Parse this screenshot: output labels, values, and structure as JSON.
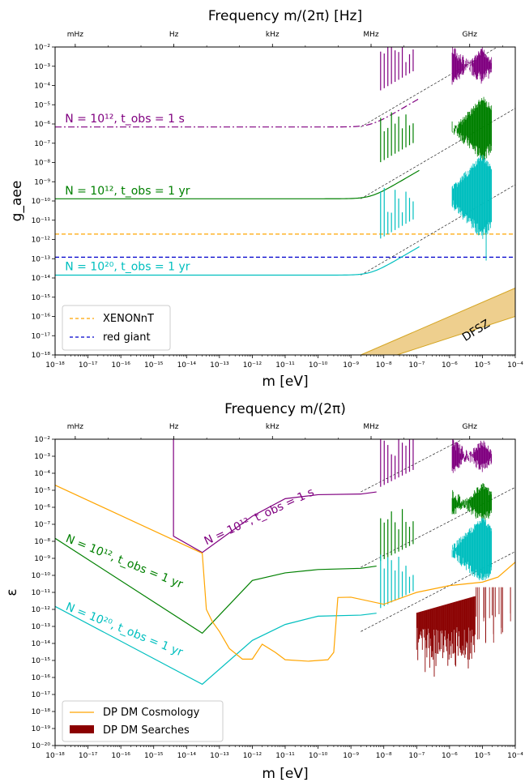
{
  "colors": {
    "purple": "#800080",
    "green": "#008000",
    "cyan": "#00bfbf",
    "orange": "#ffa500",
    "blue": "#0000cc",
    "darkred": "#8b0000",
    "dfsz_fill": "#eecf8e",
    "dfsz_edge": "#d4a420"
  },
  "chart_data": [
    {
      "type": "line",
      "title": "Frequency m/(2π) [Hz]",
      "xlabel": "m [eV]",
      "ylabel": "g_aee",
      "xscale": "log",
      "yscale": "log",
      "xlim": [
        1e-18,
        0.0001
      ],
      "ylim": [
        1e-18,
        0.01
      ],
      "x_tick_labels": [
        "10⁻¹⁸",
        "10⁻¹⁷",
        "10⁻¹⁶",
        "10⁻¹⁵",
        "10⁻¹⁴",
        "10⁻¹³",
        "10⁻¹²",
        "10⁻¹¹",
        "10⁻¹⁰",
        "10⁻⁹",
        "10⁻⁸",
        "10⁻⁷",
        "10⁻⁶",
        "10⁻⁵",
        "10⁻⁴"
      ],
      "y_tick_labels": [
        "10⁻¹⁸",
        "10⁻¹⁷",
        "10⁻¹⁶",
        "10⁻¹⁵",
        "10⁻¹⁴",
        "10⁻¹³",
        "10⁻¹²",
        "10⁻¹¹",
        "10⁻¹⁰",
        "10⁻⁹",
        "10⁻⁸",
        "10⁻⁷",
        "10⁻⁶",
        "10⁻⁵",
        "10⁻⁴",
        "10⁻³",
        "10⁻²"
      ],
      "top_axis": [
        {
          "label": "mHz",
          "m": 4.1e-18
        },
        {
          "label": "Hz",
          "m": 4.1e-15
        },
        {
          "label": "kHz",
          "m": 4.1e-12
        },
        {
          "label": "MHz",
          "m": 4.1e-09
        },
        {
          "label": "GHz",
          "m": 4.1e-06
        }
      ],
      "series": [
        {
          "key": "purple",
          "floor": 7e-07,
          "floor_style": "dashdot"
        },
        {
          "key": "green",
          "floor": 1.3e-10
        },
        {
          "key": "cyan",
          "floor": 1.4e-14
        }
      ],
      "annotations": [
        {
          "text": "N = 10¹², t_obs = 1 s",
          "color": "purple",
          "m": 2e-18,
          "g": 1.2e-06,
          "rot": 0
        },
        {
          "text": "N = 10¹², t_obs = 1 yr",
          "color": "green",
          "m": 2e-18,
          "g": 2.2e-10,
          "rot": 0
        },
        {
          "text": "N = 10²⁰, t_obs = 1 yr",
          "color": "cyan",
          "m": 2e-18,
          "g": 2.5e-14,
          "rot": 0
        },
        {
          "text": "DFSZ",
          "color": "black",
          "m": 3e-06,
          "g": 5e-18,
          "rot": -32
        }
      ],
      "hlines": [
        {
          "name": "XENONnT",
          "y": 1.9e-12,
          "color": "orange"
        },
        {
          "name": "red giant",
          "y": 1.2e-13,
          "color": "blue"
        }
      ],
      "legend": [
        "XENONnT",
        "red giant"
      ],
      "legend_position": "lower-left",
      "dfsz_band": {
        "m": [
          2e-09,
          0.0001
        ],
        "g_low": [
          1e-18,
          1e-16
        ],
        "g_high": [
          1e-18,
          3e-15
        ]
      }
    },
    {
      "type": "line",
      "title": "Frequency m/(2π)",
      "xlabel": "m [eV]",
      "ylabel": "ε",
      "xscale": "log",
      "yscale": "log",
      "xlim": [
        1e-18,
        0.0001
      ],
      "ylim": [
        1e-20,
        0.01
      ],
      "x_tick_labels": [
        "10⁻¹⁸",
        "10⁻¹⁷",
        "10⁻¹⁶",
        "10⁻¹⁵",
        "10⁻¹⁴",
        "10⁻¹³",
        "10⁻¹²",
        "10⁻¹¹",
        "10⁻¹⁰",
        "10⁻⁹",
        "10⁻⁸",
        "10⁻⁷",
        "10⁻⁶",
        "10⁻⁵",
        "10⁻⁴"
      ],
      "y_tick_labels": [
        "10⁻²⁰",
        "10⁻¹⁹",
        "10⁻¹⁸",
        "10⁻¹⁷",
        "10⁻¹⁶",
        "10⁻¹⁵",
        "10⁻¹⁴",
        "10⁻¹³",
        "10⁻¹²",
        "10⁻¹¹",
        "10⁻¹⁰",
        "10⁻⁹",
        "10⁻⁸",
        "10⁻⁷",
        "10⁻⁶",
        "10⁻⁵",
        "10⁻⁴",
        "10⁻³",
        "10⁻²"
      ],
      "top_axis": [
        {
          "label": "mHz",
          "m": 4.1e-18
        },
        {
          "label": "Hz",
          "m": 4.1e-15
        },
        {
          "label": "kHz",
          "m": 4.1e-12
        },
        {
          "label": "MHz",
          "m": 4.1e-09
        },
        {
          "label": "GHz",
          "m": 4.1e-06
        }
      ],
      "series": [
        {
          "key": "purple",
          "points": [
            [
              4e-15,
              0.01
            ],
            [
              4e-15,
              2e-08
            ],
            [
              3e-14,
              2.2e-09
            ],
            [
              1e-12,
              3e-07
            ],
            [
              1e-11,
              3.2e-06
            ],
            [
              1e-10,
              5.5e-06
            ],
            [
              2e-09,
              6e-06
            ],
            [
              6e-09,
              8e-06
            ]
          ]
        },
        {
          "key": "green",
          "points": [
            [
              1e-18,
              1.5e-08
            ],
            [
              3e-14,
              4e-14
            ],
            [
              1e-12,
              5e-11
            ],
            [
              1e-11,
              1.4e-10
            ],
            [
              1e-10,
              2.2e-10
            ],
            [
              2e-09,
              2.6e-10
            ],
            [
              6e-09,
              3.5e-10
            ]
          ]
        },
        {
          "key": "cyan",
          "points": [
            [
              1e-18,
              1.5e-12
            ],
            [
              3e-14,
              4e-17
            ],
            [
              1e-12,
              1.5e-14
            ],
            [
              1e-11,
              1.3e-13
            ],
            [
              1e-10,
              4e-13
            ],
            [
              2e-09,
              4.6e-13
            ],
            [
              6e-09,
              6e-13
            ]
          ]
        }
      ],
      "cosmology": {
        "name": "DP DM Cosmology",
        "color": "orange",
        "points": [
          [
            1e-18,
            2e-05
          ],
          [
            3e-14,
            2e-09
          ],
          [
            4e-14,
            1e-12
          ],
          [
            6e-14,
            2e-13
          ],
          [
            1e-13,
            5e-14
          ],
          [
            2e-13,
            5e-15
          ],
          [
            5e-13,
            1.2e-15
          ],
          [
            1e-12,
            1.2e-15
          ],
          [
            2e-12,
            9e-15
          ],
          [
            5e-12,
            3e-15
          ],
          [
            1e-11,
            1.1e-15
          ],
          [
            5e-11,
            9e-16
          ],
          [
            2e-10,
            1.1e-15
          ],
          [
            3e-10,
            3e-15
          ],
          [
            4e-10,
            5e-12
          ],
          [
            1e-09,
            5.2e-12
          ],
          [
            1e-08,
            2e-12
          ],
          [
            1e-07,
            1e-11
          ],
          [
            1e-06,
            2.5e-11
          ],
          [
            1e-05,
            4e-11
          ],
          [
            3e-05,
            8e-11
          ],
          [
            0.0001,
            6e-10
          ]
        ]
      },
      "searches": {
        "name": "DP DM Searches",
        "color": "darkred",
        "m_range": [
          1e-07,
          6e-06
        ]
      },
      "annotations": [
        {
          "text": "N = 10¹², t_obs = 1 s",
          "color": "purple",
          "m": 4e-14,
          "e": 6e-09,
          "rot": -25
        },
        {
          "text": "N = 10¹², t_obs = 1 yr",
          "color": "green",
          "m": 2e-18,
          "e": 1e-08,
          "rot": 22
        },
        {
          "text": "N = 10²⁰, t_obs = 1 yr",
          "color": "cyan",
          "m": 2e-18,
          "e": 1e-12,
          "rot": 22
        }
      ],
      "legend": [
        "DP DM Cosmology",
        "DP DM Searches"
      ],
      "legend_position": "lower-left"
    }
  ],
  "text": {
    "top_title": "Frequency m/(2π) [Hz]",
    "top_xlabel": "m [eV]",
    "top_ylabel": "g_aee",
    "legend_top_1": "XENONnT",
    "legend_top_2": "red giant",
    "bottom_title": "Frequency m/(2π)",
    "bottom_xlabel": "m [eV]",
    "bottom_ylabel": "ε",
    "legend_bottom_1": "DP DM Cosmology",
    "legend_bottom_2": "DP DM Searches",
    "dfsz": "DFSZ"
  }
}
